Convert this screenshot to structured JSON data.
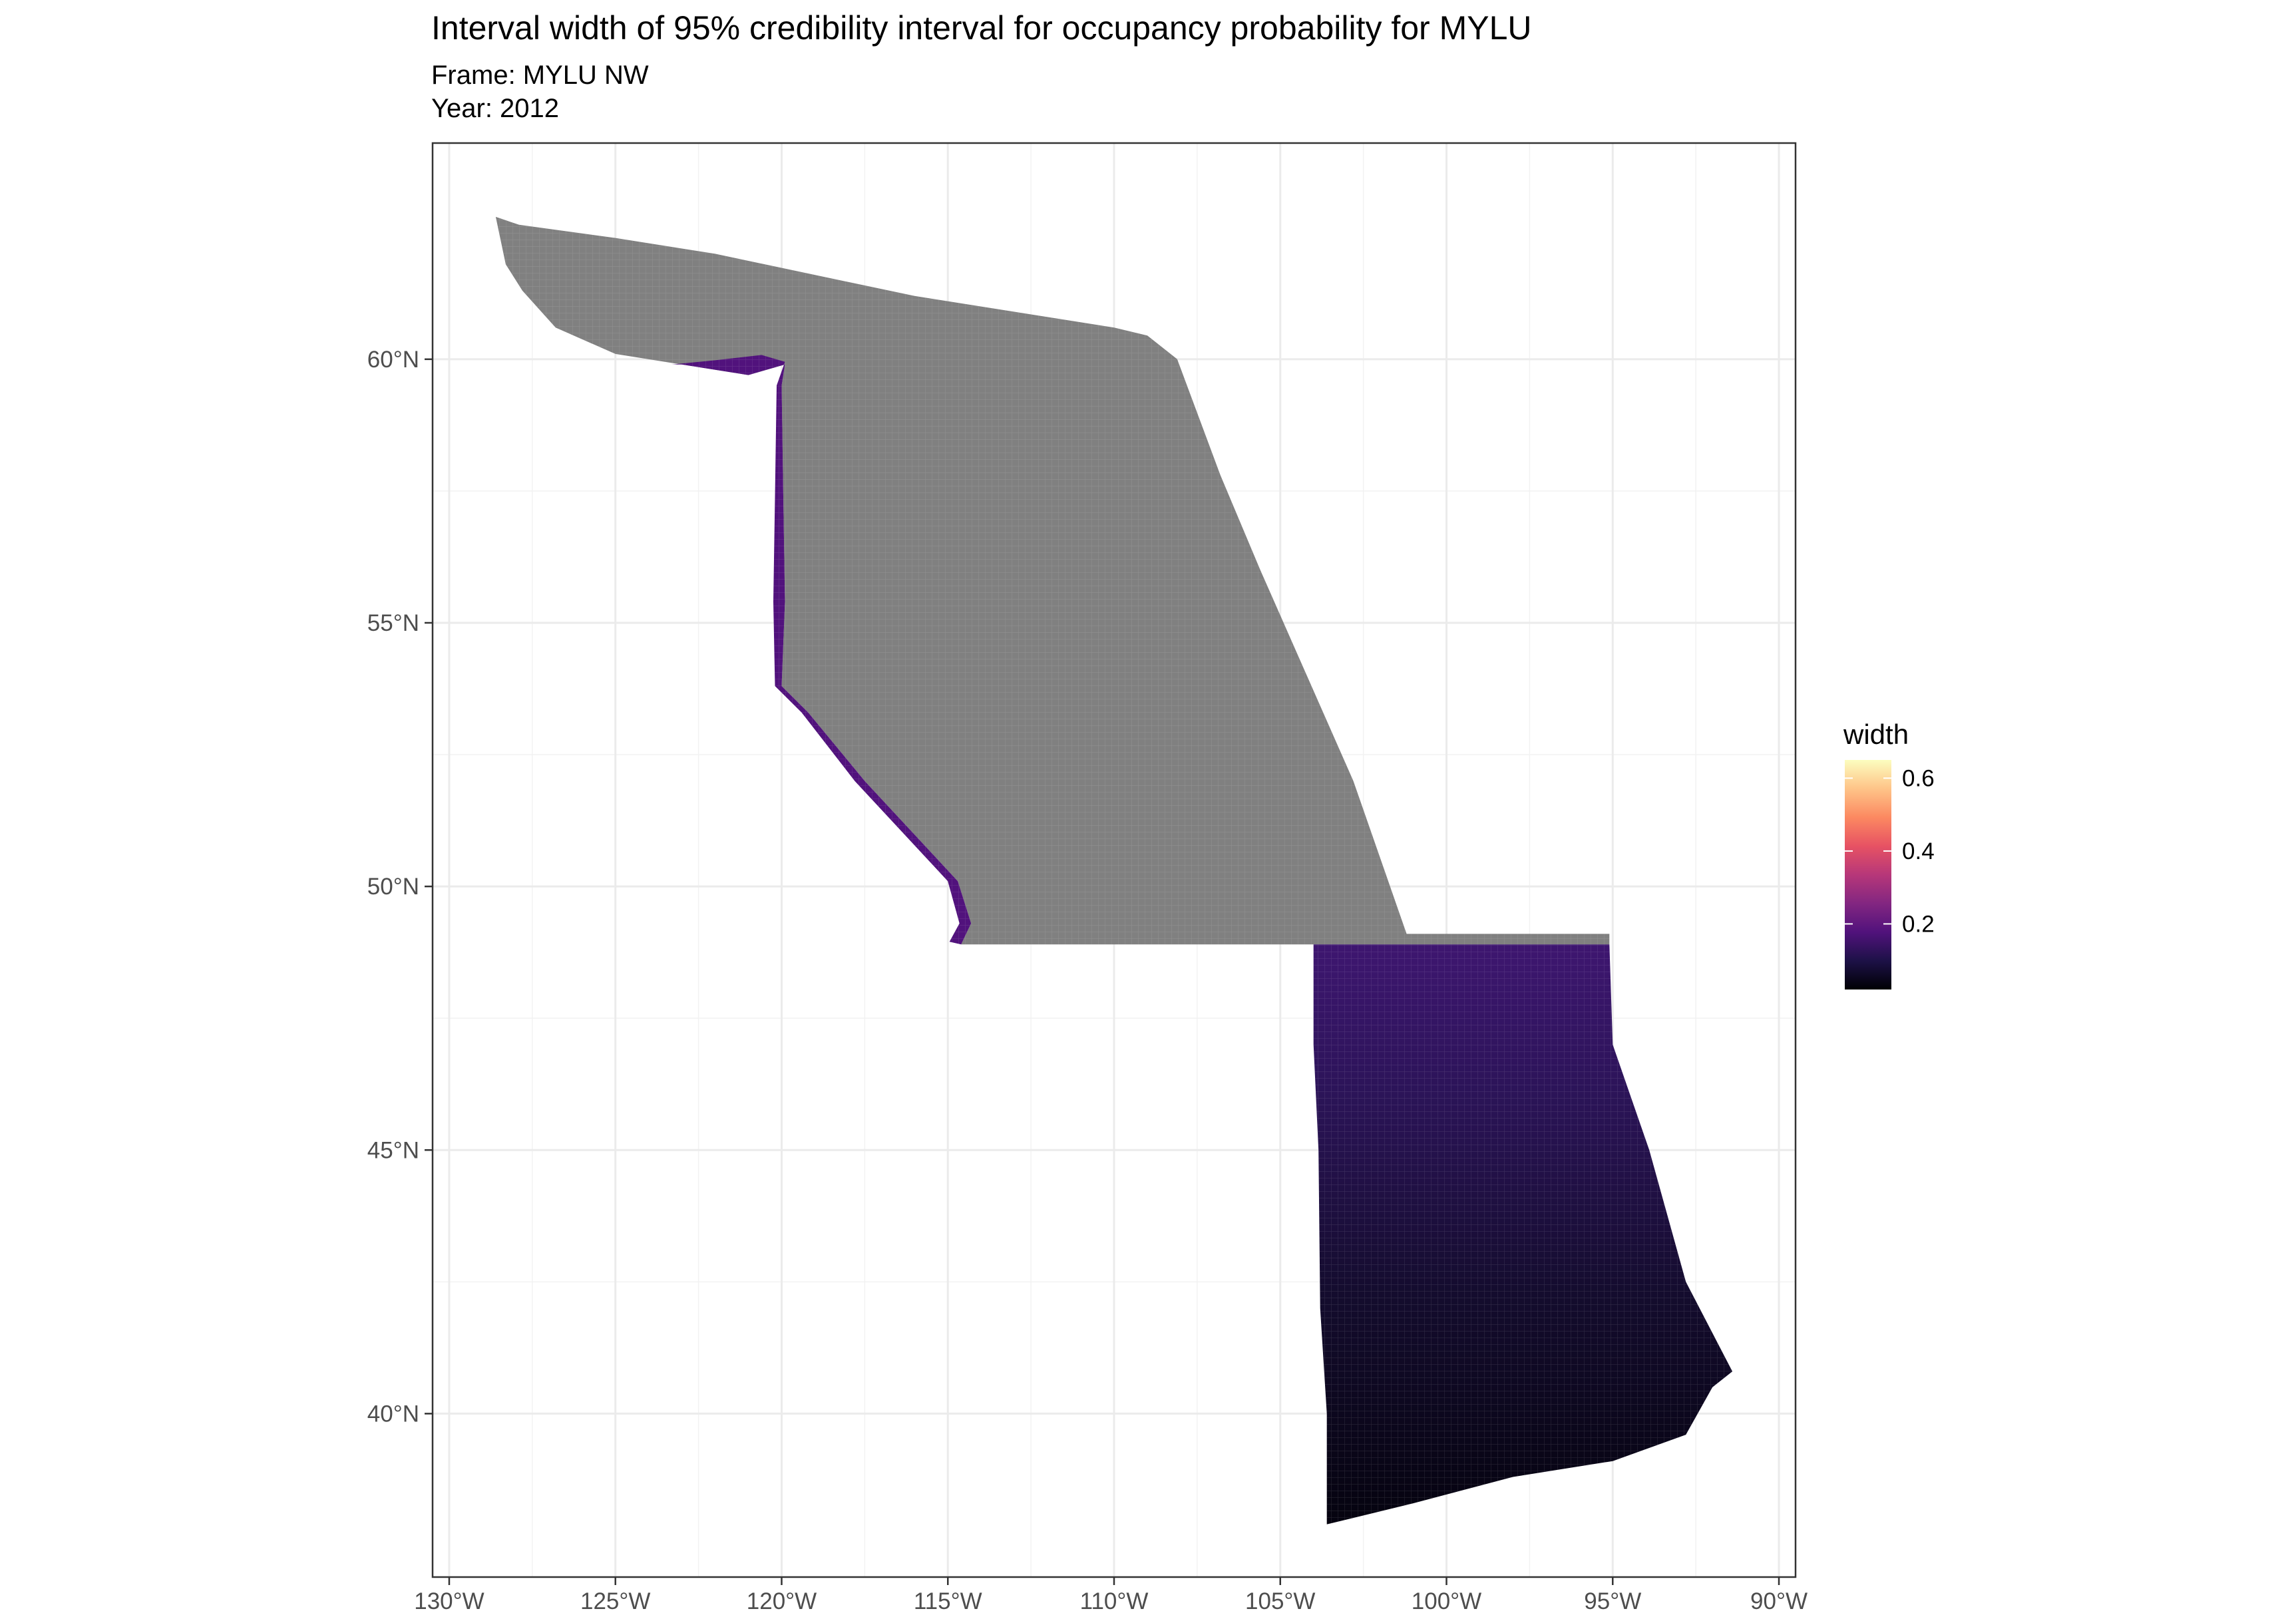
{
  "title": "Interval width of 95% credibility interval for occupancy probability for MYLU",
  "subtitle_frame": "Frame: MYLU NW",
  "subtitle_year": "Year: 2012",
  "chart_data": {
    "type": "heatmap",
    "lon_range": [
      -130.5,
      -89.5
    ],
    "lat_range": [
      36.9,
      64.1
    ],
    "x_ticks": [
      {
        "value": -130,
        "label": "130°W"
      },
      {
        "value": -125,
        "label": "125°W"
      },
      {
        "value": -120,
        "label": "120°W"
      },
      {
        "value": -115,
        "label": "115°W"
      },
      {
        "value": -110,
        "label": "110°W"
      },
      {
        "value": -105,
        "label": "105°W"
      },
      {
        "value": -100,
        "label": "100°W"
      },
      {
        "value": -95,
        "label": "95°W"
      },
      {
        "value": -90,
        "label": "90°W"
      }
    ],
    "y_ticks": [
      {
        "value": 40,
        "label": "40°N"
      },
      {
        "value": 45,
        "label": "45°N"
      },
      {
        "value": 50,
        "label": "50°N"
      },
      {
        "value": 55,
        "label": "55°N"
      },
      {
        "value": 60,
        "label": "60°N"
      }
    ],
    "grid": true,
    "legend": {
      "title": "width",
      "placement": "right",
      "ticks": [
        {
          "value": 0.2,
          "label": "0.2"
        },
        {
          "value": 0.4,
          "label": "0.4"
        },
        {
          "value": 0.6,
          "label": "0.6"
        }
      ],
      "range": [
        0.02,
        0.65
      ],
      "colors": [
        "#000004",
        "#1d1147",
        "#51127c",
        "#832681",
        "#b73779",
        "#e75263",
        "#fc8961",
        "#fec488",
        "#fcfdbf"
      ]
    },
    "regions": [
      {
        "name": "no-data-region",
        "fill": "#808080",
        "polygon": [
          [
            -128.6,
            62.7
          ],
          [
            -127.9,
            62.55
          ],
          [
            -125,
            62.3
          ],
          [
            -122,
            62.0
          ],
          [
            -119,
            61.6
          ],
          [
            -116,
            61.2
          ],
          [
            -113,
            60.9
          ],
          [
            -110,
            60.6
          ],
          [
            -109,
            60.45
          ],
          [
            -108.1,
            60.0
          ],
          [
            -106.8,
            57.8
          ],
          [
            -105.6,
            56.0
          ],
          [
            -104.2,
            54.0
          ],
          [
            -102.8,
            52.0
          ],
          [
            -101.2,
            49.1
          ],
          [
            -95.1,
            49.1
          ],
          [
            -95.1,
            48.9
          ],
          [
            -114.6,
            48.9
          ],
          [
            -114.3,
            49.3
          ],
          [
            -114.7,
            50.1
          ],
          [
            -117.5,
            52.0
          ],
          [
            -119.2,
            53.3
          ],
          [
            -120.0,
            53.8
          ],
          [
            -119.9,
            55.4
          ],
          [
            -119.95,
            57.4
          ],
          [
            -120.0,
            59.5
          ],
          [
            -119.9,
            59.9
          ],
          [
            -121.0,
            59.7
          ],
          [
            -123.0,
            59.9
          ],
          [
            -125.0,
            60.1
          ],
          [
            -126.8,
            60.6
          ],
          [
            -127.8,
            61.3
          ],
          [
            -128.3,
            61.8
          ]
        ]
      },
      {
        "name": "west-edge-strip",
        "fill": "#51127c",
        "polygon": [
          [
            -123.3,
            59.9
          ],
          [
            -122.0,
            59.98
          ],
          [
            -120.6,
            60.08
          ],
          [
            -119.9,
            59.95
          ],
          [
            -120.15,
            59.5
          ],
          [
            -120.2,
            57.4
          ],
          [
            -120.25,
            55.4
          ],
          [
            -120.2,
            53.8
          ],
          [
            -119.4,
            53.3
          ],
          [
            -117.8,
            52.0
          ],
          [
            -115.0,
            50.1
          ],
          [
            -114.65,
            49.3
          ],
          [
            -114.95,
            48.95
          ],
          [
            -114.6,
            48.9
          ],
          [
            -114.3,
            49.3
          ],
          [
            -114.7,
            50.1
          ],
          [
            -117.5,
            52.0
          ],
          [
            -119.2,
            53.3
          ],
          [
            -120.0,
            53.8
          ],
          [
            -119.9,
            55.4
          ],
          [
            -119.95,
            57.4
          ],
          [
            -120.0,
            59.5
          ],
          [
            -119.9,
            59.9
          ],
          [
            -121.0,
            59.7
          ],
          [
            -123.0,
            59.9
          ]
        ]
      },
      {
        "name": "southern-region",
        "gradient": true,
        "polygon": [
          [
            -104.0,
            48.9
          ],
          [
            -95.1,
            48.9
          ],
          [
            -95.0,
            47.0
          ],
          [
            -93.9,
            45.0
          ],
          [
            -92.8,
            42.5
          ],
          [
            -91.4,
            40.8
          ],
          [
            -92.0,
            40.5
          ],
          [
            -92.8,
            39.6
          ],
          [
            -95.0,
            39.1
          ],
          [
            -98.0,
            38.8
          ],
          [
            -101.0,
            38.3
          ],
          [
            -103.6,
            37.9
          ],
          [
            -103.6,
            40.0
          ],
          [
            -103.8,
            42.0
          ],
          [
            -103.85,
            45.0
          ],
          [
            -104.0,
            47.0
          ]
        ]
      }
    ]
  }
}
